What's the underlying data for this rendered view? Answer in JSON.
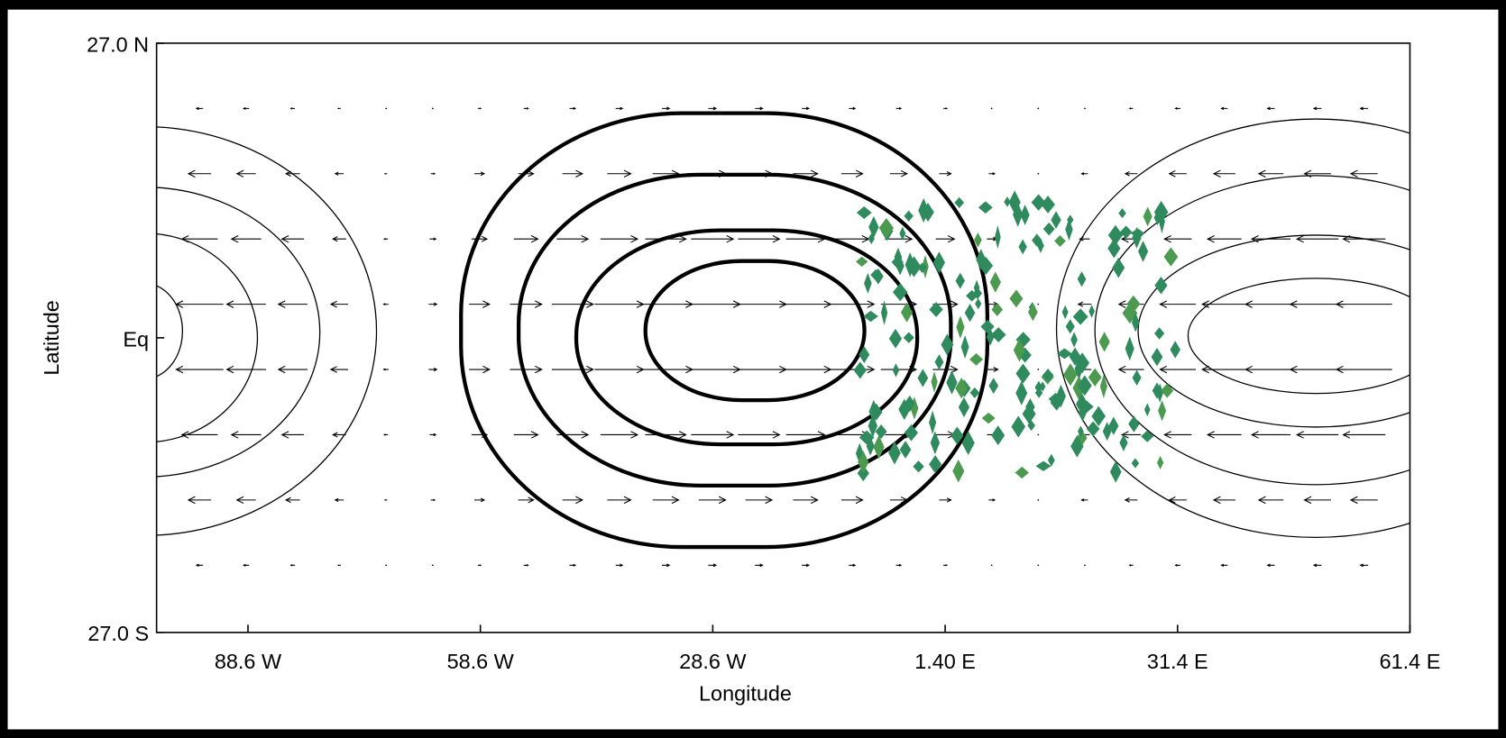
{
  "chart_data": {
    "type": "contour",
    "x_label": "Longitude",
    "y_label": "Latitude",
    "xlim": [
      -100.4,
      61.4
    ],
    "xticks": [
      {
        "value": -88.6,
        "label": "88.6 W"
      },
      {
        "value": -58.6,
        "label": "58.6 W"
      },
      {
        "value": -28.6,
        "label": "28.6 W"
      },
      {
        "value": 1.4,
        "label": "1.40 E"
      },
      {
        "value": 31.4,
        "label": "31.4 E"
      },
      {
        "value": 61.4,
        "label": "61.4 E"
      }
    ],
    "ylim": [
      -27,
      27
    ],
    "yticks": [
      {
        "value": -27,
        "label": "27.0 S"
      },
      {
        "value": 0,
        "label": "Eq"
      },
      {
        "value": 27,
        "label": "27.0 N"
      }
    ]
  }
}
